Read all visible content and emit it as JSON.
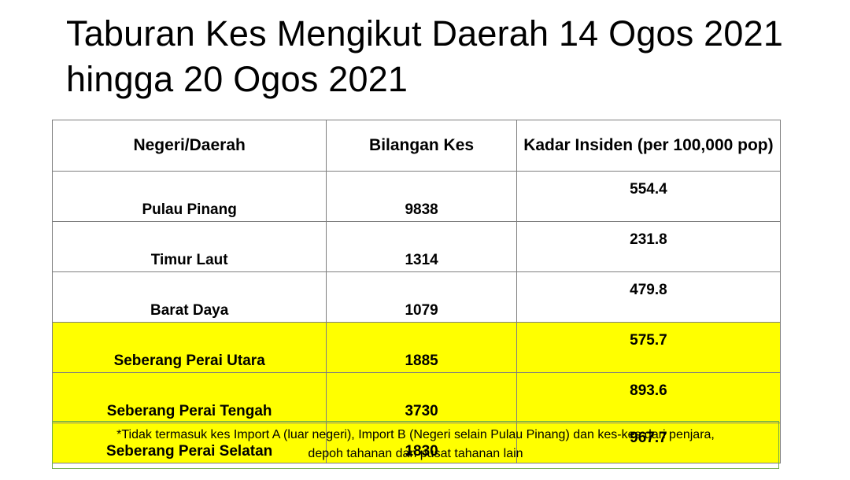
{
  "title": "Taburan Kes Mengikut Daerah  14 Ogos 2021 hingga 20 Ogos 2021",
  "table": {
    "headers": [
      "Negeri/Daerah",
      "Bilangan Kes",
      "Kadar Insiden (per 100,000 pop)"
    ],
    "rows": [
      {
        "name": "Pulau Pinang",
        "cases": "9838",
        "rate": "554.4",
        "highlight": false
      },
      {
        "name": "Timur Laut",
        "cases": "1314",
        "rate": "231.8",
        "highlight": false
      },
      {
        "name": "Barat Daya",
        "cases": "1079",
        "rate": "479.8",
        "highlight": false
      },
      {
        "name": "Seberang Perai Utara",
        "cases": "1885",
        "rate": "575.7",
        "highlight": true
      },
      {
        "name": "Seberang Perai Tengah",
        "cases": "3730",
        "rate": "893.6",
        "highlight": true
      },
      {
        "name": "Seberang Perai Selatan",
        "cases": "1830",
        "rate": "967.7",
        "highlight": true
      }
    ]
  },
  "footnote": {
    "line1": "*Tidak termasuk kes Import A (luar negeri), Import B (Negeri selain Pulau Pinang) dan kes-kes dari penjara,",
    "line2": "depoh tahanan dan pusat tahanan lain"
  },
  "colors": {
    "highlight": "#ffff00",
    "table_border": "#7f7f7f",
    "footnote_border": "#70ad47"
  }
}
